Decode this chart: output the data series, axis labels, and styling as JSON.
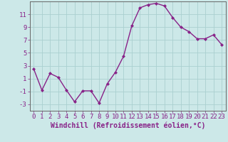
{
  "x": [
    0,
    1,
    2,
    3,
    4,
    5,
    6,
    7,
    8,
    9,
    10,
    11,
    12,
    13,
    14,
    15,
    16,
    17,
    18,
    19,
    20,
    21,
    22,
    23
  ],
  "y": [
    2.5,
    -0.8,
    1.8,
    1.2,
    -0.8,
    -2.6,
    -0.9,
    -0.9,
    -2.8,
    0.2,
    2.0,
    4.5,
    9.2,
    12.0,
    12.5,
    12.7,
    12.3,
    10.5,
    9.0,
    8.3,
    7.2,
    7.2,
    7.8,
    6.3
  ],
  "line_color": "#882288",
  "marker": "D",
  "marker_size": 2.0,
  "line_width": 1.0,
  "bg_color": "#cce8e8",
  "grid_color": "#aad0d0",
  "xlabel": "Windchill (Refroidissement éolien,°C)",
  "xlabel_fontsize": 7,
  "tick_fontsize": 6.5,
  "ylim": [
    -4,
    13
  ],
  "yticks": [
    -3,
    -1,
    1,
    3,
    5,
    7,
    9,
    11
  ],
  "xticks": [
    0,
    1,
    2,
    3,
    4,
    5,
    6,
    7,
    8,
    9,
    10,
    11,
    12,
    13,
    14,
    15,
    16,
    17,
    18,
    19,
    20,
    21,
    22,
    23
  ]
}
